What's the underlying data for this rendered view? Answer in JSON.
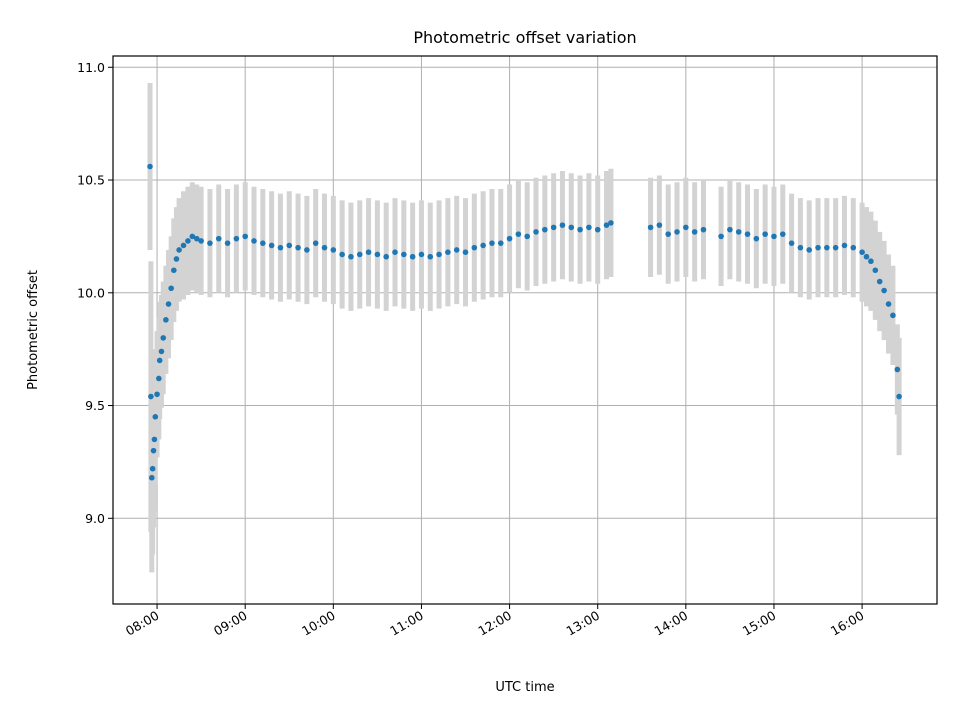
{
  "chart_data": {
    "type": "scatter",
    "title": "Photometric offset variation",
    "xlabel": "UTC time",
    "ylabel": "Photometric offset",
    "xlim": [
      7.5,
      16.85
    ],
    "ylim": [
      8.62,
      11.05
    ],
    "xticks": [
      8,
      9,
      10,
      11,
      12,
      13,
      14,
      15,
      16
    ],
    "xtick_labels": [
      "08:00",
      "09:00",
      "10:00",
      "11:00",
      "12:00",
      "13:00",
      "14:00",
      "15:00",
      "16:00"
    ],
    "yticks": [
      9.0,
      9.5,
      10.0,
      10.5,
      11.0
    ],
    "ytick_labels": [
      "9.0",
      "9.5",
      "10.0",
      "10.5",
      "11.0"
    ],
    "grid": true,
    "error_bar_color": "#d3d3d3",
    "point_color": "#1f77b4",
    "series": [
      {
        "name": "offset",
        "x": [
          7.92,
          7.93,
          7.94,
          7.95,
          7.96,
          7.97,
          7.98,
          8.0,
          8.02,
          8.03,
          8.05,
          8.07,
          8.1,
          8.13,
          8.16,
          8.19,
          8.22,
          8.25,
          8.3,
          8.35,
          8.4,
          8.45,
          8.5,
          8.6,
          8.7,
          8.8,
          8.9,
          9.0,
          9.1,
          9.2,
          9.3,
          9.4,
          9.5,
          9.6,
          9.7,
          9.8,
          9.9,
          10.0,
          10.1,
          10.2,
          10.3,
          10.4,
          10.5,
          10.6,
          10.7,
          10.8,
          10.9,
          11.0,
          11.1,
          11.2,
          11.3,
          11.4,
          11.5,
          11.6,
          11.7,
          11.8,
          11.9,
          12.0,
          12.1,
          12.2,
          12.3,
          12.4,
          12.5,
          12.6,
          12.7,
          12.8,
          12.9,
          13.0,
          13.1,
          13.15,
          13.6,
          13.7,
          13.8,
          13.9,
          14.0,
          14.1,
          14.2,
          14.4,
          14.5,
          14.6,
          14.7,
          14.8,
          14.9,
          15.0,
          15.1,
          15.2,
          15.3,
          15.4,
          15.5,
          15.6,
          15.7,
          15.8,
          15.9,
          16.0,
          16.05,
          16.1,
          16.15,
          16.2,
          16.25,
          16.3,
          16.35,
          16.4,
          16.42
        ],
        "y": [
          10.56,
          9.54,
          9.18,
          9.22,
          9.3,
          9.35,
          9.45,
          9.55,
          9.62,
          9.7,
          9.74,
          9.8,
          9.88,
          9.95,
          10.02,
          10.1,
          10.15,
          10.19,
          10.21,
          10.23,
          10.25,
          10.24,
          10.23,
          10.22,
          10.24,
          10.22,
          10.24,
          10.25,
          10.23,
          10.22,
          10.21,
          10.2,
          10.21,
          10.2,
          10.19,
          10.22,
          10.2,
          10.19,
          10.17,
          10.16,
          10.17,
          10.18,
          10.17,
          10.16,
          10.18,
          10.17,
          10.16,
          10.17,
          10.16,
          10.17,
          10.18,
          10.19,
          10.18,
          10.2,
          10.21,
          10.22,
          10.22,
          10.24,
          10.26,
          10.25,
          10.27,
          10.28,
          10.29,
          10.3,
          10.29,
          10.28,
          10.29,
          10.28,
          10.3,
          10.31,
          10.29,
          10.3,
          10.26,
          10.27,
          10.29,
          10.27,
          10.28,
          10.25,
          10.28,
          10.27,
          10.26,
          10.24,
          10.26,
          10.25,
          10.26,
          10.22,
          10.2,
          10.19,
          10.2,
          10.2,
          10.2,
          10.21,
          10.2,
          10.18,
          10.16,
          10.14,
          10.1,
          10.05,
          10.01,
          9.95,
          9.9,
          9.66,
          9.54
        ],
        "err": [
          0.37,
          0.6,
          0.42,
          0.38,
          0.34,
          0.32,
          0.3,
          0.28,
          0.27,
          0.26,
          0.25,
          0.25,
          0.24,
          0.24,
          0.23,
          0.23,
          0.23,
          0.23,
          0.24,
          0.24,
          0.24,
          0.24,
          0.24,
          0.24,
          0.24,
          0.24,
          0.24,
          0.24,
          0.24,
          0.24,
          0.24,
          0.24,
          0.24,
          0.24,
          0.24,
          0.24,
          0.24,
          0.24,
          0.24,
          0.24,
          0.24,
          0.24,
          0.24,
          0.24,
          0.24,
          0.24,
          0.24,
          0.24,
          0.24,
          0.24,
          0.24,
          0.24,
          0.24,
          0.24,
          0.24,
          0.24,
          0.24,
          0.24,
          0.24,
          0.24,
          0.24,
          0.24,
          0.24,
          0.24,
          0.24,
          0.24,
          0.24,
          0.24,
          0.24,
          0.24,
          0.22,
          0.22,
          0.22,
          0.22,
          0.22,
          0.22,
          0.22,
          0.22,
          0.22,
          0.22,
          0.22,
          0.22,
          0.22,
          0.22,
          0.22,
          0.22,
          0.22,
          0.22,
          0.22,
          0.22,
          0.22,
          0.22,
          0.22,
          0.22,
          0.22,
          0.22,
          0.22,
          0.22,
          0.22,
          0.22,
          0.22,
          0.2,
          0.26
        ]
      }
    ]
  }
}
